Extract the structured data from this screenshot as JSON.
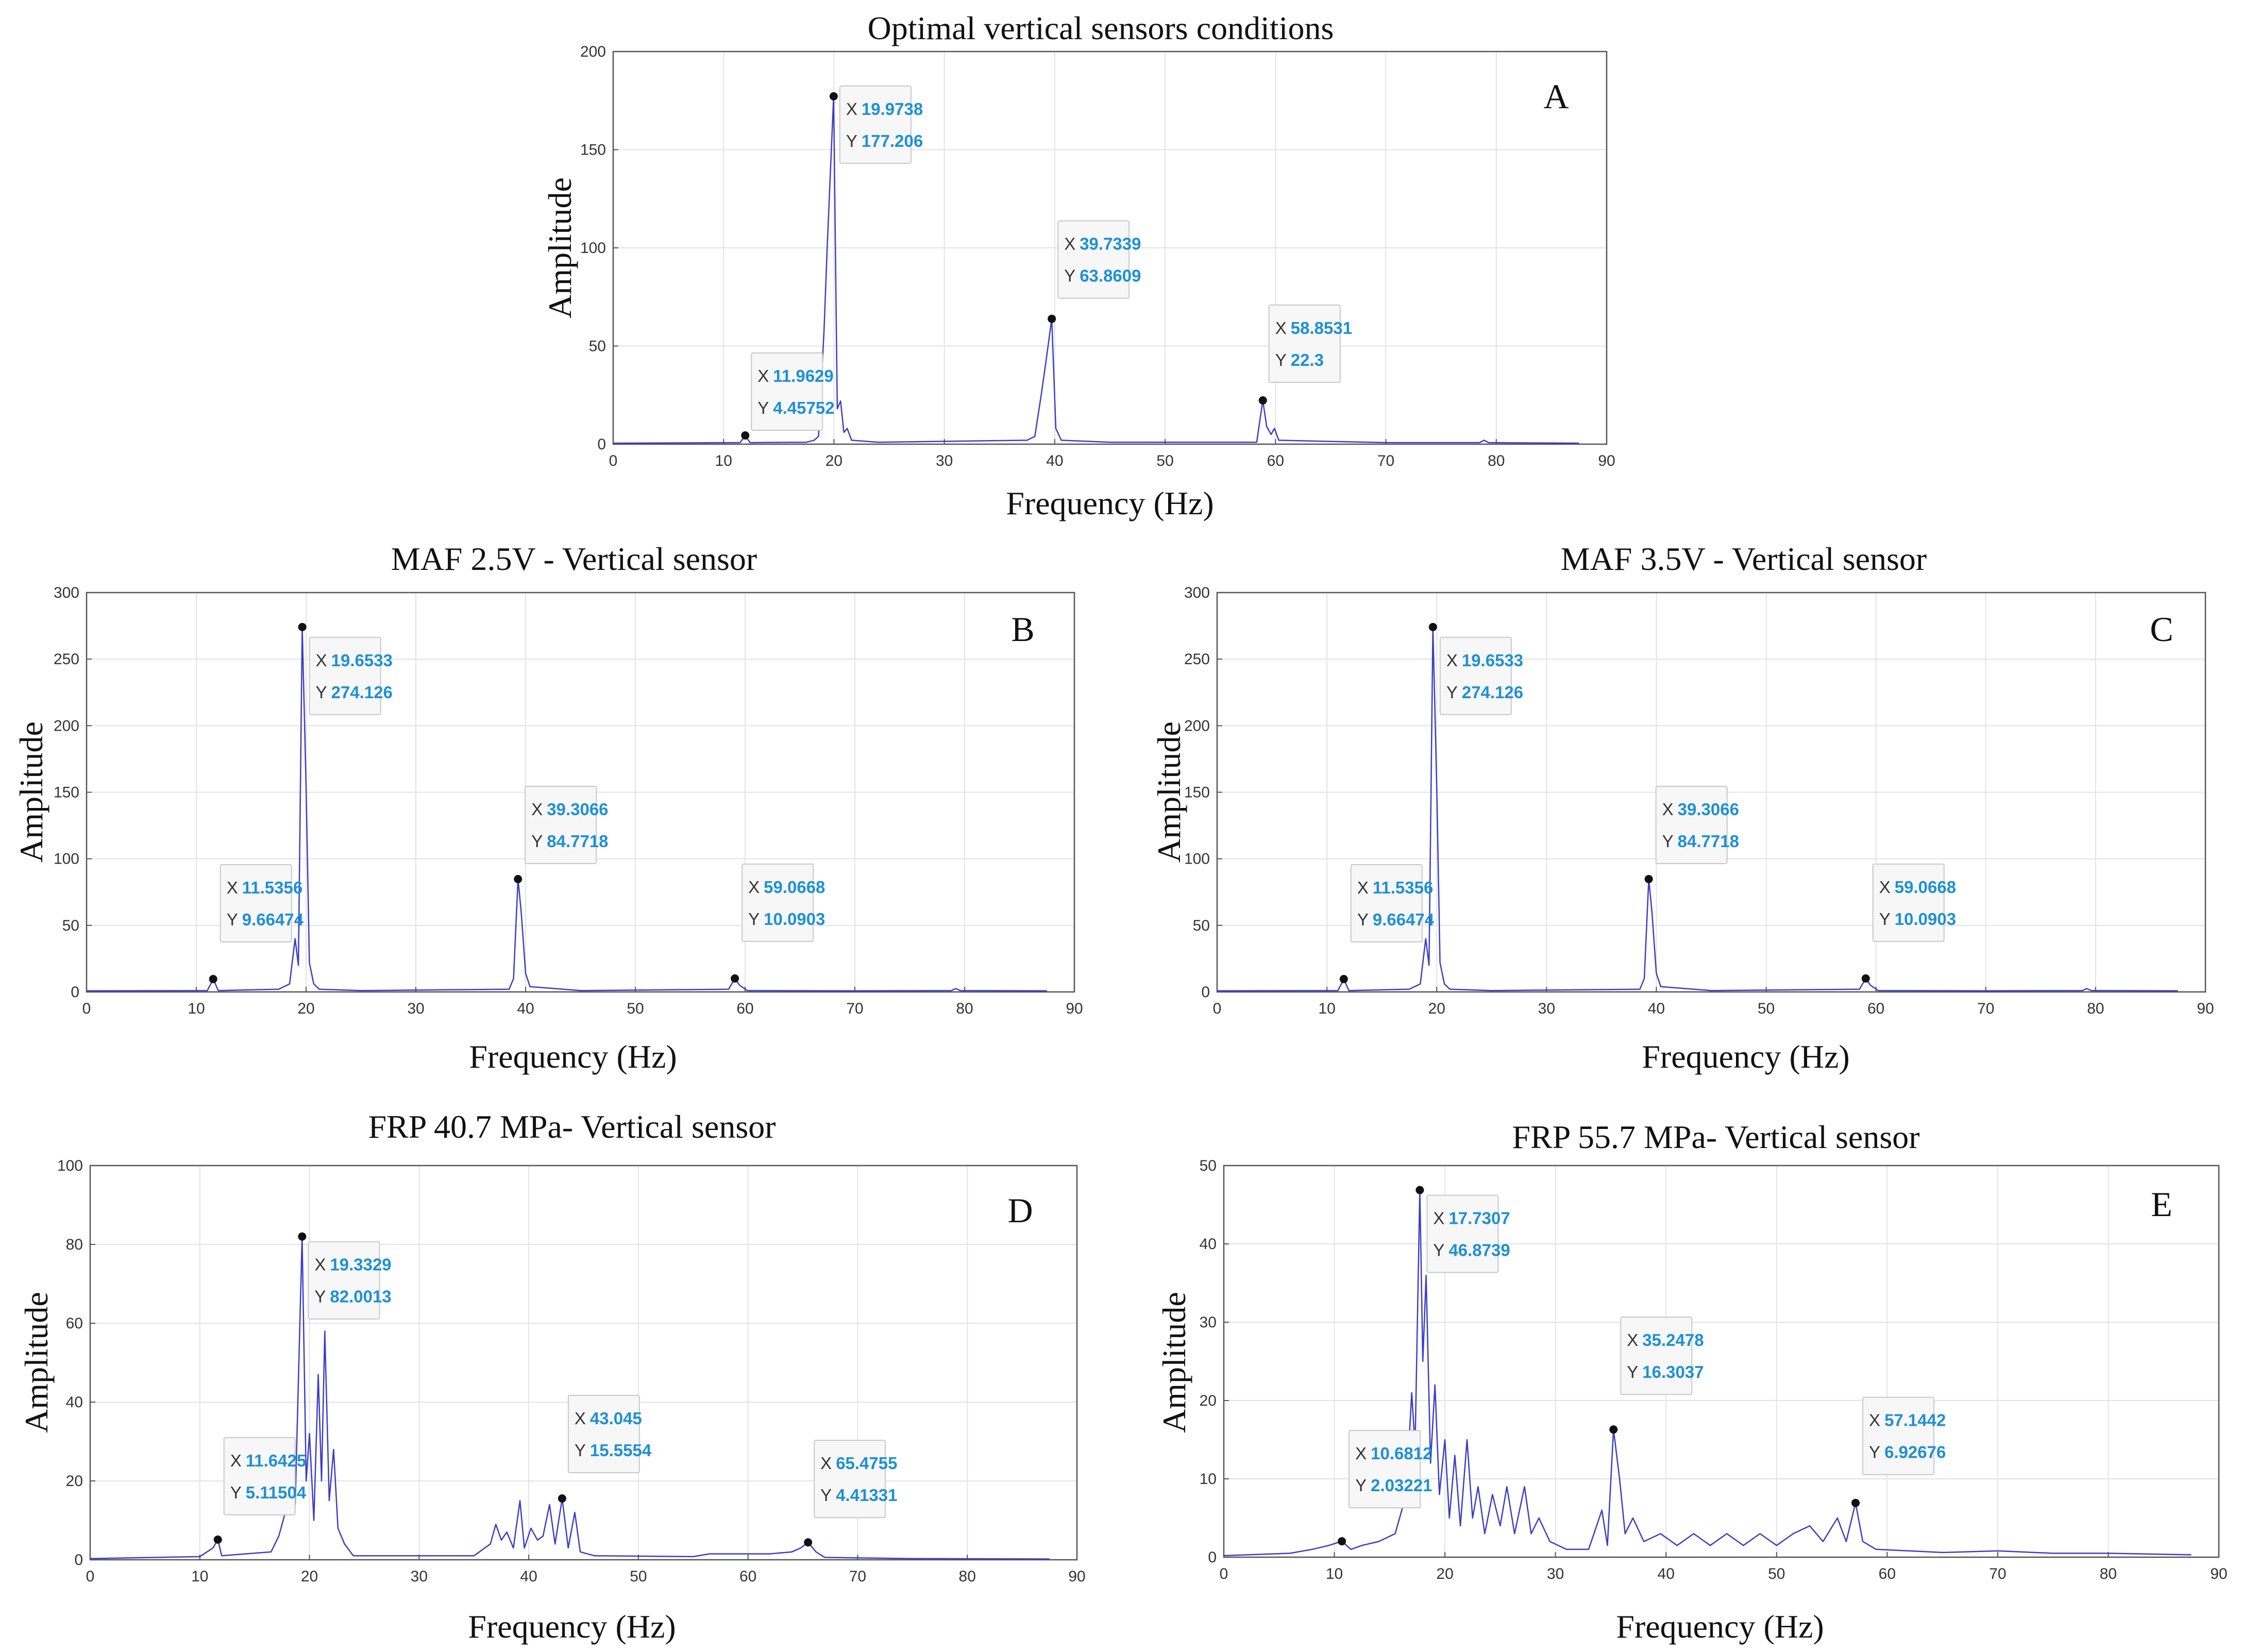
{
  "chart_data": [
    {
      "id": "A",
      "type": "line",
      "title": "Optimal vertical sensors conditions",
      "panel_letter": "A",
      "xlabel": "Frequency (Hz)",
      "ylabel": "Amplitude",
      "xlim": [
        0,
        90
      ],
      "ylim": [
        0,
        200
      ],
      "xticks": [
        0,
        10,
        20,
        30,
        40,
        50,
        60,
        70,
        80,
        90
      ],
      "yticks": [
        0,
        50,
        100,
        150,
        200
      ],
      "grid": true,
      "spectrum": [
        [
          0,
          0.5
        ],
        [
          11.5,
          0.8
        ],
        [
          11.96,
          4.46
        ],
        [
          12.4,
          0.8
        ],
        [
          17.5,
          1
        ],
        [
          18.2,
          2
        ],
        [
          18.6,
          4
        ],
        [
          19.1,
          58
        ],
        [
          19.4,
          102
        ],
        [
          19.97,
          177.2
        ],
        [
          20.3,
          18
        ],
        [
          20.6,
          22
        ],
        [
          20.9,
          6
        ],
        [
          21.2,
          8
        ],
        [
          21.6,
          2
        ],
        [
          24,
          1
        ],
        [
          37.5,
          2
        ],
        [
          38.2,
          4
        ],
        [
          38.8,
          26
        ],
        [
          39.2,
          42
        ],
        [
          39.73,
          63.9
        ],
        [
          40.1,
          8
        ],
        [
          40.6,
          2
        ],
        [
          45,
          1
        ],
        [
          58.3,
          1
        ],
        [
          58.85,
          22.3
        ],
        [
          59.2,
          9
        ],
        [
          59.6,
          5
        ],
        [
          59.9,
          8
        ],
        [
          60.3,
          2
        ],
        [
          70,
          0.8
        ],
        [
          78.5,
          0.8
        ],
        [
          78.9,
          2
        ],
        [
          79.3,
          0.8
        ],
        [
          87.5,
          0.5
        ]
      ],
      "datatips": [
        {
          "x_label": "11.9629",
          "y_label": "4.45752",
          "x": 11.9629,
          "y": 4.45752
        },
        {
          "x_label": "19.9738",
          "y_label": "177.206",
          "x": 19.9738,
          "y": 177.206
        },
        {
          "x_label": "39.7339",
          "y_label": "63.8609",
          "x": 39.7339,
          "y": 63.8609
        },
        {
          "x_label": "58.8531",
          "y_label": "22.3",
          "x": 58.8531,
          "y": 22.3
        }
      ]
    },
    {
      "id": "B",
      "type": "line",
      "title": "MAF 2.5V - Vertical sensor",
      "panel_letter": "B",
      "xlabel": "Frequency (Hz)",
      "ylabel": "Amplitude",
      "xlim": [
        0,
        90
      ],
      "ylim": [
        0,
        300
      ],
      "xticks": [
        0,
        10,
        20,
        30,
        40,
        50,
        60,
        70,
        80,
        90
      ],
      "yticks": [
        0,
        50,
        100,
        150,
        200,
        250,
        300
      ],
      "grid": true,
      "spectrum": [
        [
          0,
          0.8
        ],
        [
          11,
          1
        ],
        [
          11.54,
          9.66
        ],
        [
          12,
          1
        ],
        [
          17.5,
          2
        ],
        [
          18.5,
          6
        ],
        [
          19.0,
          40
        ],
        [
          19.3,
          20
        ],
        [
          19.65,
          274.1
        ],
        [
          20.0,
          155
        ],
        [
          20.3,
          22
        ],
        [
          20.7,
          6
        ],
        [
          21.2,
          2
        ],
        [
          25,
          1
        ],
        [
          38.5,
          2
        ],
        [
          38.9,
          10
        ],
        [
          39.31,
          84.8
        ],
        [
          39.6,
          60
        ],
        [
          40.0,
          14
        ],
        [
          40.4,
          4
        ],
        [
          45,
          1
        ],
        [
          58.5,
          2
        ],
        [
          59.07,
          10.09
        ],
        [
          59.5,
          5
        ],
        [
          60.2,
          1
        ],
        [
          70,
          0.8
        ],
        [
          78.8,
          1
        ],
        [
          79.2,
          2.5
        ],
        [
          79.6,
          1
        ],
        [
          87.5,
          0.8
        ]
      ],
      "datatips": [
        {
          "x_label": "11.5356",
          "y_label": "9.66474",
          "x": 11.5356,
          "y": 9.66474
        },
        {
          "x_label": "19.6533",
          "y_label": "274.126",
          "x": 19.6533,
          "y": 274.126
        },
        {
          "x_label": "39.3066",
          "y_label": "84.7718",
          "x": 39.3066,
          "y": 84.7718
        },
        {
          "x_label": "59.0668",
          "y_label": "10.0903",
          "x": 59.0668,
          "y": 10.0903
        }
      ]
    },
    {
      "id": "C",
      "type": "line",
      "title": "MAF 3.5V - Vertical sensor",
      "panel_letter": "C",
      "xlabel": "Frequency (Hz)",
      "ylabel": "Amplitude",
      "xlim": [
        0,
        90
      ],
      "ylim": [
        0,
        300
      ],
      "xticks": [
        0,
        10,
        20,
        30,
        40,
        50,
        60,
        70,
        80,
        90
      ],
      "yticks": [
        0,
        50,
        100,
        150,
        200,
        250,
        300
      ],
      "grid": true,
      "spectrum": [
        [
          0,
          0.8
        ],
        [
          11,
          1
        ],
        [
          11.54,
          9.66
        ],
        [
          12,
          1
        ],
        [
          17.5,
          2
        ],
        [
          18.5,
          6
        ],
        [
          19.0,
          40
        ],
        [
          19.3,
          20
        ],
        [
          19.65,
          274.1
        ],
        [
          20.0,
          155
        ],
        [
          20.3,
          22
        ],
        [
          20.7,
          6
        ],
        [
          21.2,
          2
        ],
        [
          25,
          1
        ],
        [
          38.5,
          2
        ],
        [
          38.9,
          10
        ],
        [
          39.31,
          84.8
        ],
        [
          39.6,
          60
        ],
        [
          40.0,
          14
        ],
        [
          40.4,
          4
        ],
        [
          45,
          1
        ],
        [
          58.5,
          2
        ],
        [
          59.07,
          10.09
        ],
        [
          59.5,
          5
        ],
        [
          60.2,
          1
        ],
        [
          70,
          0.8
        ],
        [
          78.8,
          1
        ],
        [
          79.2,
          2.5
        ],
        [
          79.6,
          1
        ],
        [
          87.5,
          0.8
        ]
      ],
      "datatips": [
        {
          "x_label": "11.5356",
          "y_label": "9.66474",
          "x": 11.5356,
          "y": 9.66474
        },
        {
          "x_label": "19.6533",
          "y_label": "274.126",
          "x": 19.6533,
          "y": 274.126
        },
        {
          "x_label": "39.3066",
          "y_label": "84.7718",
          "x": 39.3066,
          "y": 84.7718
        },
        {
          "x_label": "59.0668",
          "y_label": "10.0903",
          "x": 59.0668,
          "y": 10.0903
        }
      ]
    },
    {
      "id": "D",
      "type": "line",
      "title": "FRP 40.7 MPa- Vertical sensor",
      "panel_letter": "D",
      "xlabel": "Frequency (Hz)",
      "ylabel": "Amplitude",
      "xlim": [
        0,
        90
      ],
      "ylim": [
        0,
        100
      ],
      "xticks": [
        0,
        10,
        20,
        30,
        40,
        50,
        60,
        70,
        80,
        90
      ],
      "yticks": [
        0,
        20,
        40,
        60,
        80,
        100
      ],
      "grid": true,
      "spectrum": [
        [
          0,
          0.3
        ],
        [
          10,
          0.8
        ],
        [
          11.2,
          3
        ],
        [
          11.64,
          5.12
        ],
        [
          12.0,
          1
        ],
        [
          16.5,
          2
        ],
        [
          17.2,
          6
        ],
        [
          17.8,
          12
        ],
        [
          18.3,
          30
        ],
        [
          18.7,
          14
        ],
        [
          19.33,
          82.0
        ],
        [
          19.7,
          20
        ],
        [
          20.0,
          32
        ],
        [
          20.4,
          10
        ],
        [
          20.8,
          47
        ],
        [
          21.1,
          20
        ],
        [
          21.4,
          58
        ],
        [
          21.8,
          15
        ],
        [
          22.2,
          28
        ],
        [
          22.6,
          8
        ],
        [
          23.2,
          4
        ],
        [
          24,
          1
        ],
        [
          35,
          1
        ],
        [
          36.5,
          4
        ],
        [
          37.0,
          9
        ],
        [
          37.5,
          5
        ],
        [
          38.0,
          7
        ],
        [
          38.6,
          3
        ],
        [
          39.2,
          15
        ],
        [
          39.6,
          3
        ],
        [
          40.2,
          8
        ],
        [
          40.8,
          5
        ],
        [
          41.3,
          6
        ],
        [
          41.9,
          14
        ],
        [
          42.4,
          4
        ],
        [
          43.05,
          15.56
        ],
        [
          43.6,
          3
        ],
        [
          44.2,
          12
        ],
        [
          44.7,
          2
        ],
        [
          46,
          1
        ],
        [
          55,
          0.8
        ],
        [
          56.5,
          1.5
        ],
        [
          62,
          1.5
        ],
        [
          64,
          2
        ],
        [
          64.8,
          3
        ],
        [
          65.48,
          4.41
        ],
        [
          66.2,
          2
        ],
        [
          67,
          0.6
        ],
        [
          75,
          0.3
        ],
        [
          87.5,
          0.2
        ]
      ],
      "datatips": [
        {
          "x_label": "11.6425",
          "y_label": "5.11504",
          "x": 11.6425,
          "y": 5.11504
        },
        {
          "x_label": "19.3329",
          "y_label": "82.0013",
          "x": 19.3329,
          "y": 82.0013
        },
        {
          "x_label": "43.045",
          "y_label": "15.5554",
          "x": 43.045,
          "y": 15.5554
        },
        {
          "x_label": "65.4755",
          "y_label": "4.41331",
          "x": 65.4755,
          "y": 4.41331
        }
      ]
    },
    {
      "id": "E",
      "type": "line",
      "title": "FRP 55.7 MPa- Vertical sensor",
      "panel_letter": "E",
      "xlabel": "Frequency (Hz)",
      "ylabel": "Amplitude",
      "xlim": [
        0,
        90
      ],
      "ylim": [
        0,
        50
      ],
      "xticks": [
        0,
        10,
        20,
        30,
        40,
        50,
        60,
        70,
        80,
        90
      ],
      "yticks": [
        0,
        10,
        20,
        30,
        40,
        50
      ],
      "grid": true,
      "spectrum": [
        [
          0,
          0.2
        ],
        [
          6,
          0.5
        ],
        [
          8,
          1
        ],
        [
          9.5,
          1.5
        ],
        [
          10.68,
          2.03
        ],
        [
          11.5,
          1
        ],
        [
          12.5,
          1.5
        ],
        [
          14,
          2
        ],
        [
          15.5,
          3
        ],
        [
          16.5,
          8
        ],
        [
          17.0,
          21
        ],
        [
          17.3,
          14
        ],
        [
          17.73,
          46.9
        ],
        [
          18.0,
          25
        ],
        [
          18.3,
          36
        ],
        [
          18.7,
          12
        ],
        [
          19.1,
          22
        ],
        [
          19.5,
          8
        ],
        [
          20.0,
          15
        ],
        [
          20.4,
          5
        ],
        [
          20.9,
          13
        ],
        [
          21.4,
          4
        ],
        [
          22.0,
          15
        ],
        [
          22.5,
          5
        ],
        [
          23.0,
          9
        ],
        [
          23.6,
          3
        ],
        [
          24.3,
          8
        ],
        [
          25.0,
          4
        ],
        [
          25.6,
          9
        ],
        [
          26.3,
          3
        ],
        [
          27.2,
          9
        ],
        [
          27.8,
          3
        ],
        [
          28.5,
          5
        ],
        [
          29.5,
          2
        ],
        [
          31,
          1
        ],
        [
          33,
          1
        ],
        [
          34.2,
          6
        ],
        [
          34.7,
          1.5
        ],
        [
          35.25,
          16.3
        ],
        [
          35.8,
          10
        ],
        [
          36.3,
          3
        ],
        [
          37,
          5
        ],
        [
          38,
          2
        ],
        [
          39.5,
          3
        ],
        [
          41,
          1.5
        ],
        [
          42.5,
          3
        ],
        [
          44,
          1.5
        ],
        [
          45.5,
          3
        ],
        [
          47,
          1.5
        ],
        [
          48.5,
          3
        ],
        [
          50,
          1.5
        ],
        [
          51.5,
          3
        ],
        [
          53,
          4
        ],
        [
          54.2,
          2
        ],
        [
          55.5,
          5
        ],
        [
          56.3,
          2
        ],
        [
          57.14,
          6.93
        ],
        [
          57.8,
          2
        ],
        [
          59,
          1
        ],
        [
          62,
          0.8
        ],
        [
          65,
          0.6
        ],
        [
          70,
          0.8
        ],
        [
          75,
          0.5
        ],
        [
          80,
          0.5
        ],
        [
          87.5,
          0.3
        ]
      ],
      "datatips": [
        {
          "x_label": "10.6812",
          "y_label": "2.03221",
          "x": 10.6812,
          "y": 2.03221
        },
        {
          "x_label": "17.7307",
          "y_label": "46.8739",
          "x": 17.7307,
          "y": 46.8739
        },
        {
          "x_label": "35.2478",
          "y_label": "16.3037",
          "x": 35.2478,
          "y": 16.3037
        },
        {
          "x_label": "57.1442",
          "y_label": "6.92676",
          "x": 57.1442,
          "y": 6.92676
        }
      ]
    }
  ],
  "datatip_prefix": {
    "x": "X",
    "y": "Y"
  },
  "colors": {
    "line": "#3c3cc8",
    "grid": "#e3e3e3",
    "axis": "#555555",
    "tip_value": "#1e90d6",
    "marker": "#111111"
  }
}
